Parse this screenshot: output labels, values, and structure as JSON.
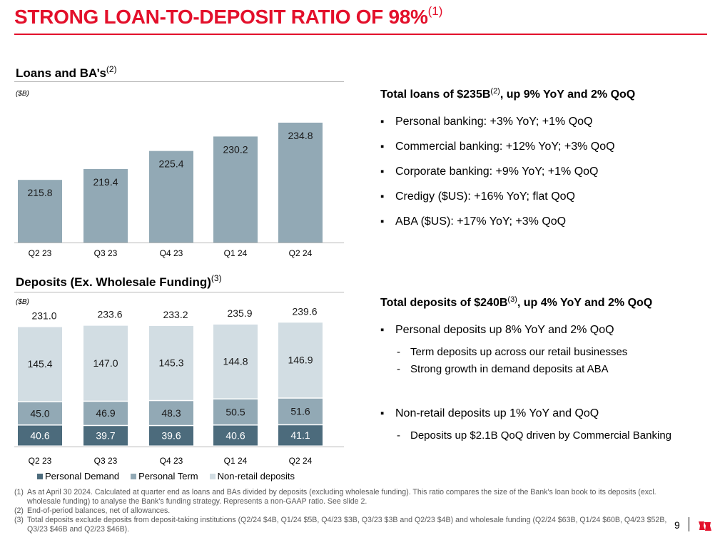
{
  "page": {
    "title": "STRONG LOAN-TO-DEPOSIT RATIO OF 98%",
    "title_note": "(1)",
    "page_number": "9"
  },
  "colors": {
    "accent": "#e3102b",
    "loans_bar": "#92a9b5",
    "personal_demand": "#4c6b7c",
    "personal_term": "#92a9b5",
    "non_retail": "#d2dde3"
  },
  "loans": {
    "title": "Loans and BA’s",
    "title_note": "(2)",
    "unit": "($B)"
  },
  "deposits": {
    "title": "Deposits (Ex. Wholesale Funding)",
    "title_note": "(3)",
    "unit": "($B)",
    "legend": [
      "Personal Demand",
      "Personal Term",
      "Non-retail deposits"
    ]
  },
  "chart_data": [
    {
      "type": "bar",
      "title": "Loans and BA’s",
      "ylabel": "($B)",
      "categories": [
        "Q2 23",
        "Q3 23",
        "Q4 23",
        "Q1 24",
        "Q2 24"
      ],
      "values": [
        215.8,
        219.4,
        225.4,
        230.2,
        234.8
      ],
      "value_labels": [
        "215.8",
        "219.4",
        "225.4",
        "230.2",
        "234.8"
      ],
      "ylim": [
        0,
        240
      ]
    },
    {
      "type": "bar",
      "stacked": true,
      "title": "Deposits (Ex. Wholesale Funding)",
      "ylabel": "($B)",
      "categories": [
        "Q2 23",
        "Q3 23",
        "Q4 23",
        "Q1 24",
        "Q2 24"
      ],
      "series": [
        {
          "name": "Personal Demand",
          "values": [
            40.6,
            39.7,
            39.6,
            40.6,
            41.1
          ],
          "labels": [
            "40.6",
            "39.7",
            "39.6",
            "40.6",
            "41.1"
          ]
        },
        {
          "name": "Personal Term",
          "values": [
            45.0,
            46.9,
            48.3,
            50.5,
            51.6
          ],
          "labels": [
            "45.0",
            "46.9",
            "48.3",
            "50.5",
            "51.6"
          ]
        },
        {
          "name": "Non-retail deposits",
          "values": [
            145.4,
            147.0,
            145.3,
            144.8,
            146.9
          ],
          "labels": [
            "145.4",
            "147.0",
            "145.3",
            "144.8",
            "146.9"
          ]
        }
      ],
      "totals": [
        231.0,
        233.6,
        233.2,
        235.9,
        239.6
      ],
      "total_labels": [
        "231.0",
        "233.6",
        "233.2",
        "235.9",
        "239.6"
      ],
      "ylim": [
        0,
        245
      ]
    }
  ],
  "loans_panel": {
    "heading_pre": "Total loans of $235B",
    "heading_note": "(2)",
    "heading_post": ", up 9% YoY and 2% QoQ",
    "bullets": [
      "Personal banking: +3% YoY; +1% QoQ",
      "Commercial banking: +12% YoY; +3% QoQ",
      "Corporate banking: +9% YoY; +1% QoQ",
      "Credigy ($US):  +16% YoY; flat QoQ",
      "ABA ($US): +17% YoY; +3% QoQ"
    ]
  },
  "deposits_panel": {
    "heading_pre": "Total deposits of $240B",
    "heading_note": "(3)",
    "heading_post": ", up 4% YoY and 2% QoQ",
    "bullet1": "Personal deposits up 8% YoY and 2% QoQ",
    "subs1": [
      "Term deposits up across our retail businesses",
      "Strong growth in demand deposits at ABA"
    ],
    "bullet2": "Non-retail deposits up 1% YoY and QoQ",
    "subs2": [
      "Deposits up $2.1B QoQ driven by Commercial Banking"
    ]
  },
  "footnotes": [
    {
      "num": "(1)",
      "text": "As at April 30 2024. Calculated at quarter end as loans and BAs divided by deposits (excluding wholesale funding). This ratio compares the size of the Bank's loan book to its deposits (excl. wholesale funding) to analyse the Bank's funding strategy. Represents a non-GAAP ratio. See slide 2."
    },
    {
      "num": "(2)",
      "text": "End-of-period balances, net of allowances."
    },
    {
      "num": "(3)",
      "text": "Total deposits exclude deposits from deposit-taking institutions (Q2/24 $4B, Q1/24 $5B, Q4/23 $3B, Q3/23 $3B and Q2/23 $4B) and wholesale funding (Q2/24 $63B, Q1/24 $60B, Q4/23 $52B, Q3/23 $46B and Q2/23 $46B)."
    }
  ]
}
